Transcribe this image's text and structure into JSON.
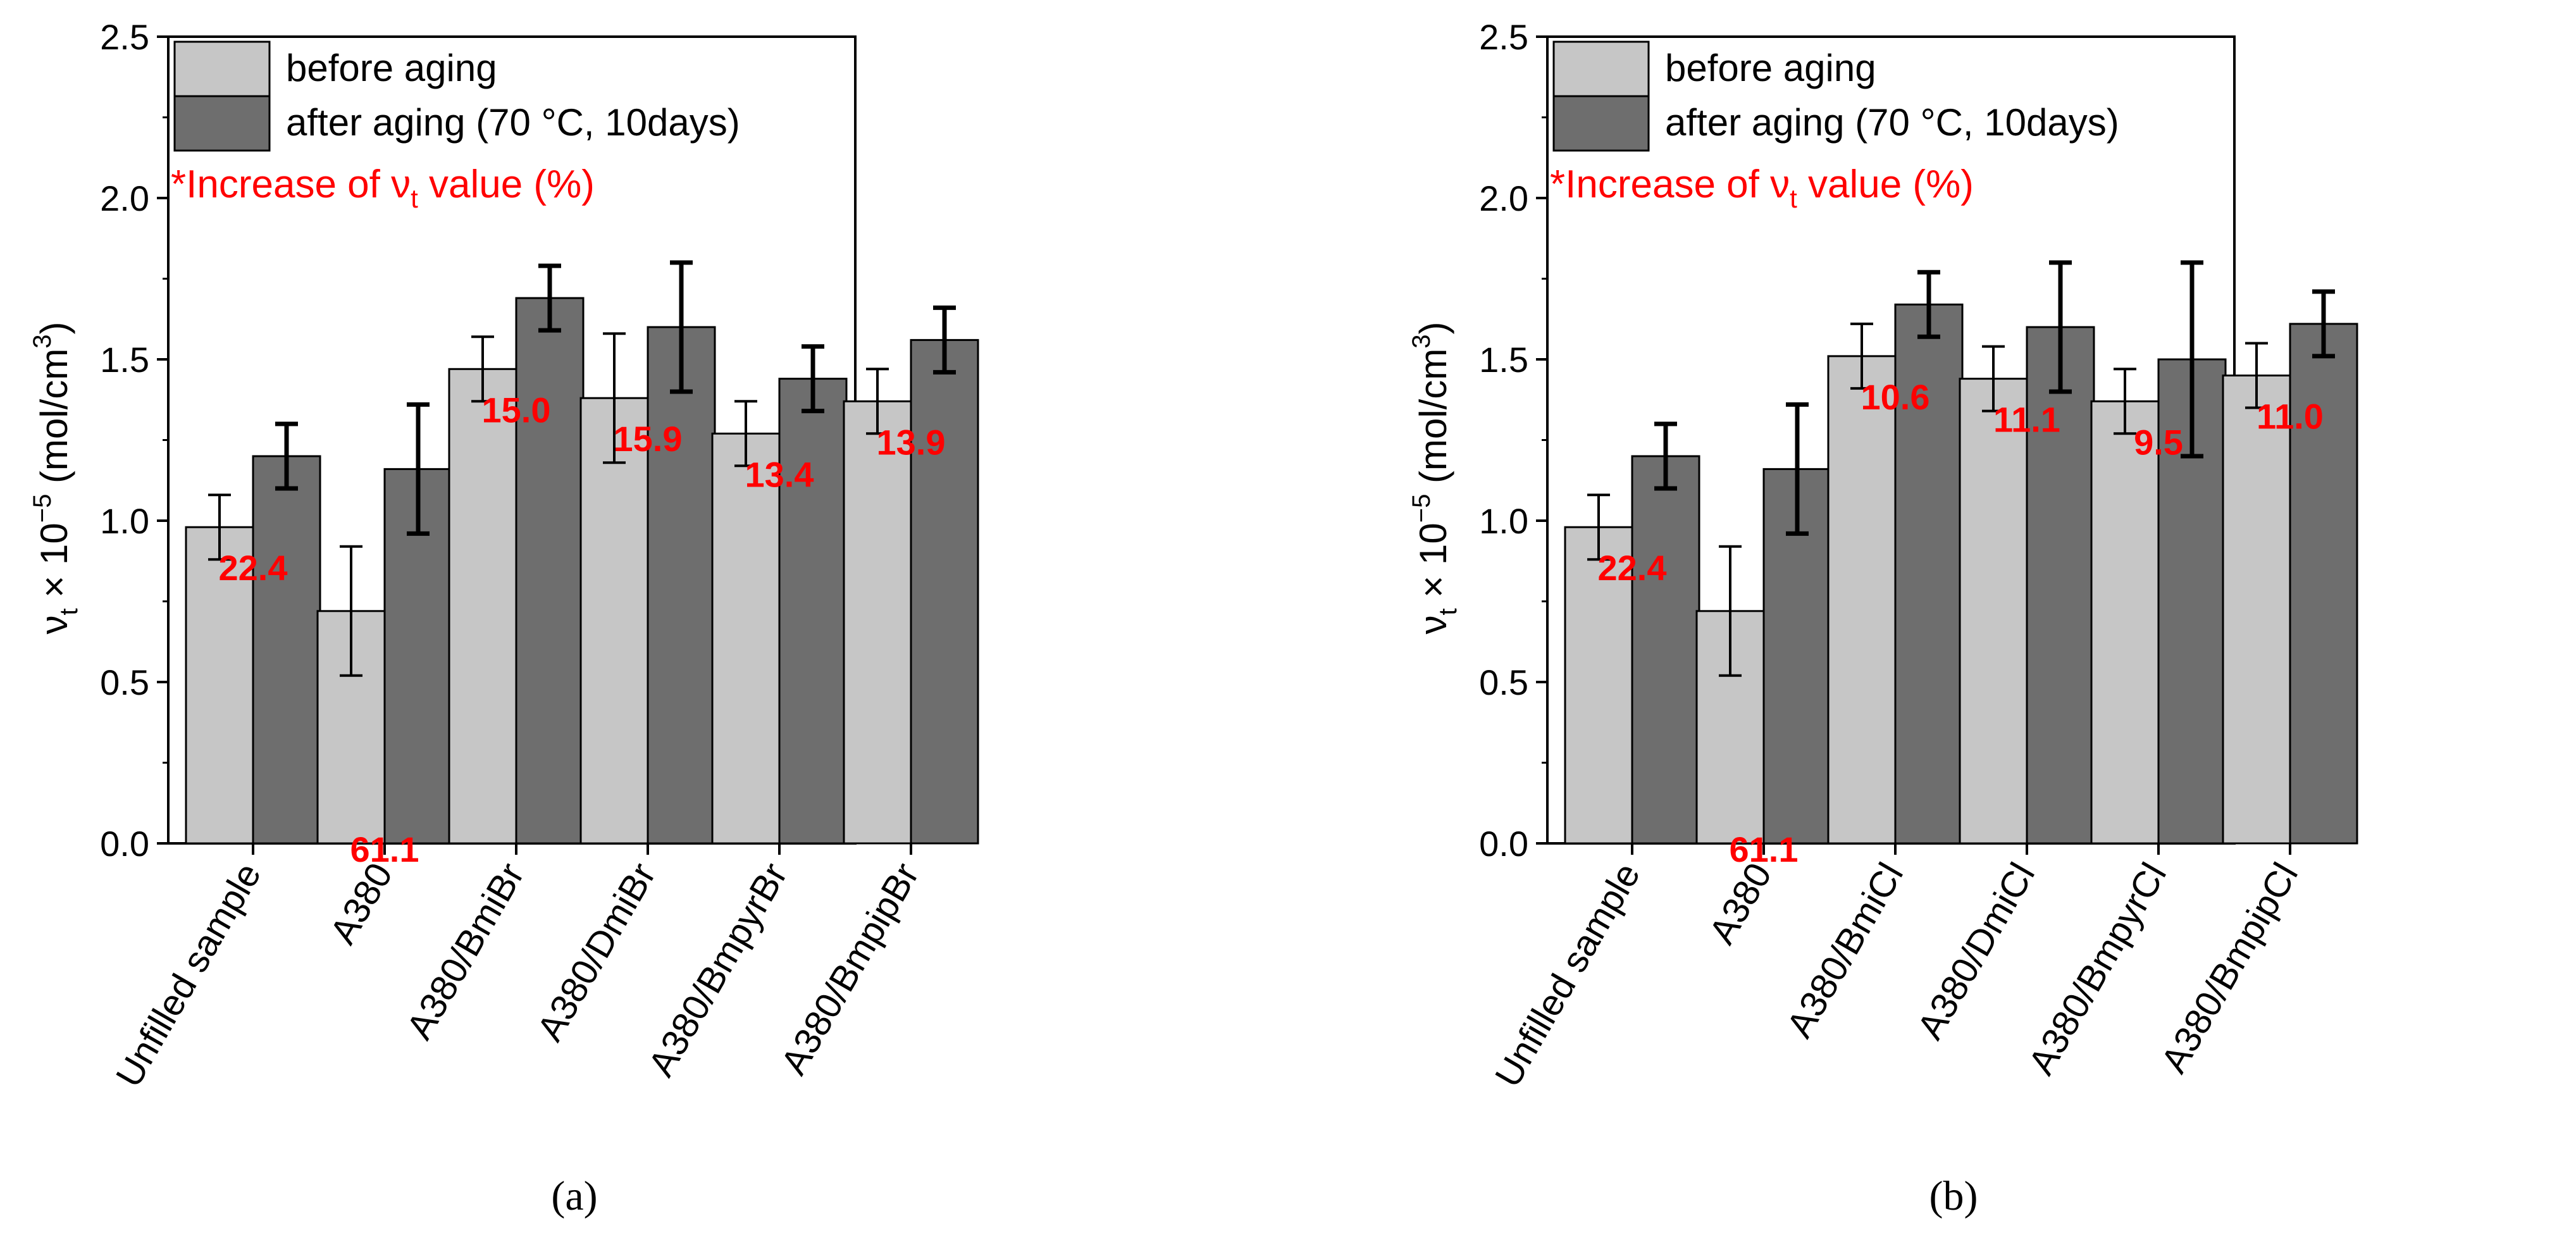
{
  "colors": {
    "before": "#c6c6c6",
    "after": "#6e6e6e",
    "axis": "#000000",
    "increase": "#ff0000"
  },
  "y_axis_label": {
    "nu": "ν",
    "sub": "t",
    "times": " × 10",
    "exp": "−5",
    "units": " (mol/cm",
    "unit_exp": "3",
    "close": ")"
  },
  "legend": {
    "before_label": "before aging",
    "after_label": "after aging (70 °C, 10days)",
    "note_prefix": "*Increase of ",
    "note_symbol": "ν",
    "note_sub": "t",
    "note_suffix": " value (%)"
  },
  "chart_data": [
    {
      "type": "bar",
      "panel_label": "(a)",
      "categories": [
        "Unfilled sample",
        "A380",
        "A380/BmiBr",
        "A380/DmiBr",
        "A380/BmpyrBr",
        "A380/BmpipBr"
      ],
      "series": [
        {
          "name": "before aging",
          "values": [
            0.98,
            0.72,
            1.47,
            1.38,
            1.27,
            1.37
          ],
          "errors": [
            0.1,
            0.2,
            0.1,
            0.2,
            0.1,
            0.1
          ]
        },
        {
          "name": "after aging (70 °C, 10days)",
          "values": [
            1.2,
            1.16,
            1.69,
            1.6,
            1.44,
            1.56
          ],
          "errors": [
            0.1,
            0.2,
            0.1,
            0.2,
            0.1,
            0.1
          ]
        }
      ],
      "increase_labels": [
        "22.4",
        "61.1",
        "15.0",
        "15.9",
        "13.4",
        "13.9"
      ],
      "ylim": [
        0,
        2.5
      ],
      "yticks": [
        "0.0",
        "0.5",
        "1.0",
        "1.5",
        "2.0",
        "2.5"
      ],
      "ylabel": "νt × 10−5 (mol/cm3)",
      "legend_position": "top-left"
    },
    {
      "type": "bar",
      "panel_label": "(b)",
      "categories": [
        "Unfilled sample",
        "A380",
        "A380/BmiCl",
        "A380/DmiCl",
        "A380/BmpyrCl",
        "A380/BmpipCl"
      ],
      "series": [
        {
          "name": "before aging",
          "values": [
            0.98,
            0.72,
            1.51,
            1.44,
            1.37,
            1.45
          ],
          "errors": [
            0.1,
            0.2,
            0.1,
            0.1,
            0.1,
            0.1
          ]
        },
        {
          "name": "after aging (70 °C, 10days)",
          "values": [
            1.2,
            1.16,
            1.67,
            1.6,
            1.5,
            1.61
          ],
          "errors": [
            0.1,
            0.2,
            0.1,
            0.2,
            0.3,
            0.1
          ]
        }
      ],
      "increase_labels": [
        "22.4",
        "61.1",
        "10.6",
        "11.1",
        "9.5",
        "11.0"
      ],
      "ylim": [
        0,
        2.5
      ],
      "yticks": [
        "0.0",
        "0.5",
        "1.0",
        "1.5",
        "2.0",
        "2.5"
      ],
      "ylabel": "νt × 10−5 (mol/cm3)",
      "legend_position": "top-left"
    }
  ]
}
